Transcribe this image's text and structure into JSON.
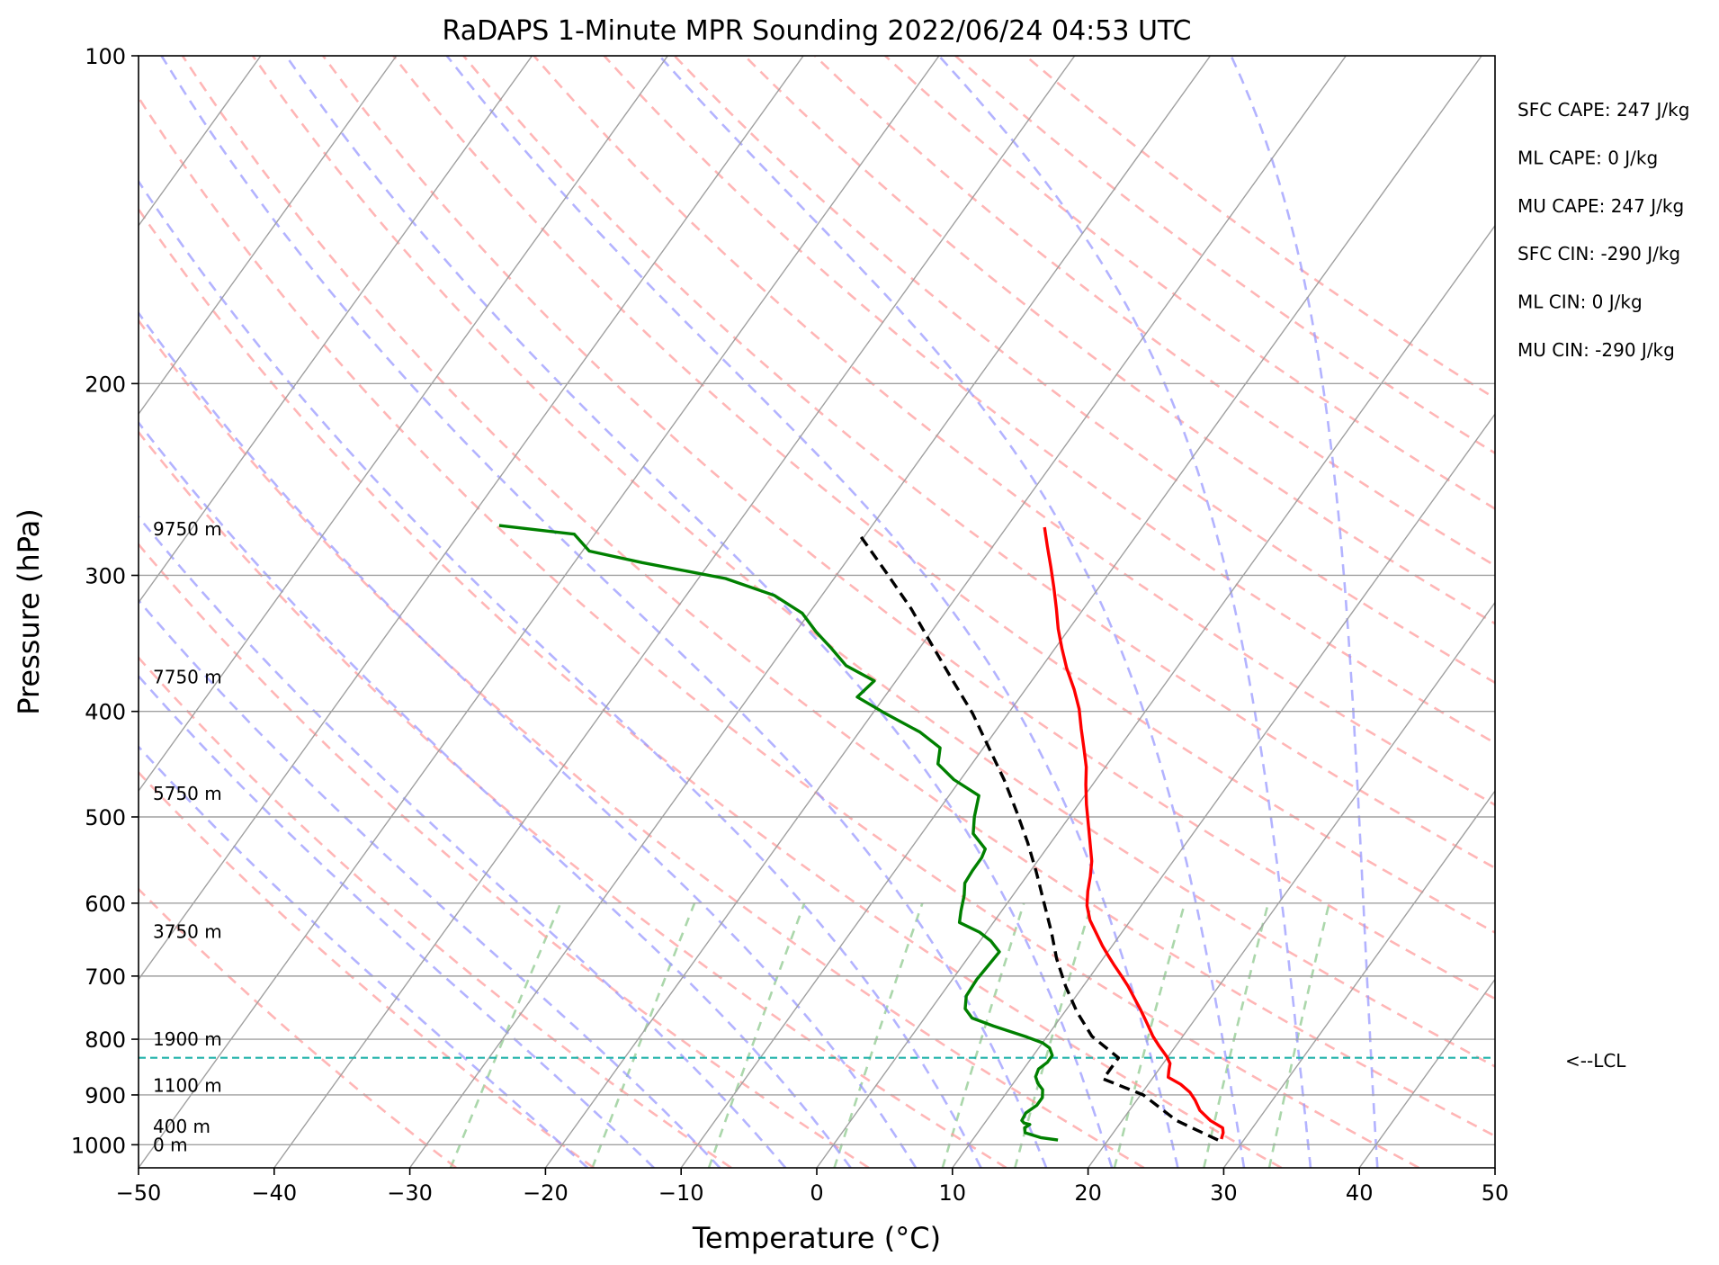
{
  "chart_data": {
    "type": "line",
    "title": "RaDAPS 1-Minute MPR Sounding 2022/06/24 04:53 UTC",
    "xlabel": "Temperature (°C)",
    "ylabel": "Pressure (hPa)",
    "xlim": [
      -50,
      50
    ],
    "ylim": [
      1050,
      100
    ],
    "y_scale": "log",
    "grid": true,
    "x_ticks": [
      "−50",
      "−40",
      "−30",
      "−20",
      "−10",
      "0",
      "10",
      "20",
      "30",
      "40",
      "50"
    ],
    "y_ticks": [
      {
        "p": 100,
        "label": "100"
      },
      {
        "p": 200,
        "label": "200"
      },
      {
        "p": 300,
        "label": "300"
      },
      {
        "p": 400,
        "label": "400"
      },
      {
        "p": 500,
        "label": "500"
      },
      {
        "p": 600,
        "label": "600"
      },
      {
        "p": 700,
        "label": "700"
      },
      {
        "p": 800,
        "label": "800"
      },
      {
        "p": 900,
        "label": "900"
      },
      {
        "p": 1000,
        "label": "1000"
      }
    ],
    "series": [
      {
        "role": "temperature",
        "color": "#ff0000",
        "points": [
          [
            28.3,
            988
          ],
          [
            28.1,
            975
          ],
          [
            27.8,
            965
          ],
          [
            26.5,
            950
          ],
          [
            25.2,
            930
          ],
          [
            24.3,
            910
          ],
          [
            23.5,
            895
          ],
          [
            22.4,
            880
          ],
          [
            21.1,
            867
          ],
          [
            20.8,
            855
          ],
          [
            20.5,
            842
          ],
          [
            19.9,
            830
          ],
          [
            18.8,
            812
          ],
          [
            17.8,
            795
          ],
          [
            16.7,
            774
          ],
          [
            15.5,
            752
          ],
          [
            14.5,
            735
          ],
          [
            13.3,
            715
          ],
          [
            12.3,
            700
          ],
          [
            11.1,
            683
          ],
          [
            10.2,
            670
          ],
          [
            9.3,
            657
          ],
          [
            8.2,
            640
          ],
          [
            7.0,
            622
          ],
          [
            6.0,
            603
          ],
          [
            5.3,
            585
          ],
          [
            4.7,
            567
          ],
          [
            4.0,
            549
          ],
          [
            3.0,
            530
          ],
          [
            1.8,
            508
          ],
          [
            0.6,
            487
          ],
          [
            -0.5,
            467
          ],
          [
            -1.4,
            450
          ],
          [
            -2.6,
            432
          ],
          [
            -3.8,
            415
          ],
          [
            -5.0,
            398
          ],
          [
            -6.4,
            382
          ],
          [
            -8.1,
            365
          ],
          [
            -9.5,
            350
          ],
          [
            -10.8,
            336
          ],
          [
            -12.0,
            322
          ],
          [
            -13.3,
            308
          ],
          [
            -14.6,
            295
          ],
          [
            -16.0,
            282
          ],
          [
            -17.2,
            271
          ]
        ]
      },
      {
        "role": "dewpoint",
        "color": "#008000",
        "points": [
          [
            16.3,
            990
          ],
          [
            14.9,
            985
          ],
          [
            13.5,
            975
          ],
          [
            13.2,
            965
          ],
          [
            13.4,
            958
          ],
          [
            12.9,
            955
          ],
          [
            12.6,
            950
          ],
          [
            12.5,
            935
          ],
          [
            12.9,
            920
          ],
          [
            12.9,
            905
          ],
          [
            12.5,
            890
          ],
          [
            11.8,
            878
          ],
          [
            11.3,
            866
          ],
          [
            11.1,
            852
          ],
          [
            11.4,
            840
          ],
          [
            11.4,
            828
          ],
          [
            10.8,
            815
          ],
          [
            10.0,
            806
          ],
          [
            8.5,
            796
          ],
          [
            5.5,
            778
          ],
          [
            3.5,
            765
          ],
          [
            2.5,
            750
          ],
          [
            1.9,
            730
          ],
          [
            1.8,
            705
          ],
          [
            1.9,
            685
          ],
          [
            2.0,
            665
          ],
          [
            0.8,
            650
          ],
          [
            -0.5,
            638
          ],
          [
            -2.5,
            625
          ],
          [
            -3.0,
            610
          ],
          [
            -3.6,
            590
          ],
          [
            -4.2,
            575
          ],
          [
            -4.3,
            560
          ],
          [
            -4.3,
            545
          ],
          [
            -4.5,
            535
          ],
          [
            -6.2,
            518
          ],
          [
            -7.0,
            500
          ],
          [
            -7.8,
            478
          ],
          [
            -10.5,
            462
          ],
          [
            -12.5,
            447
          ],
          [
            -13.2,
            432
          ],
          [
            -15.5,
            418
          ],
          [
            -19.0,
            402
          ],
          [
            -22.0,
            388
          ],
          [
            -21.6,
            375
          ],
          [
            -24.5,
            363
          ],
          [
            -26.5,
            350
          ],
          [
            -28.5,
            338
          ],
          [
            -30.5,
            325
          ],
          [
            -33.5,
            313
          ],
          [
            -38.0,
            302
          ],
          [
            -45.0,
            292
          ],
          [
            -49.5,
            285
          ],
          [
            -51.5,
            275
          ],
          [
            -57.5,
            270
          ]
        ]
      },
      {
        "role": "parcel",
        "color": "#000000",
        "dashed": true,
        "points": [
          [
            28.1,
            990
          ],
          [
            24.0,
            950
          ],
          [
            20.2,
            900
          ],
          [
            16.4,
            870
          ],
          [
            16.4,
            832
          ],
          [
            13.3,
            795
          ],
          [
            10.9,
            755
          ],
          [
            8.7,
            715
          ],
          [
            6.6,
            675
          ],
          [
            4.8,
            638
          ],
          [
            2.6,
            598
          ],
          [
            0.5,
            562
          ],
          [
            -1.7,
            528
          ],
          [
            -4.2,
            494
          ],
          [
            -6.8,
            462
          ],
          [
            -9.6,
            432
          ],
          [
            -12.6,
            402
          ],
          [
            -15.8,
            375
          ],
          [
            -19.2,
            348
          ],
          [
            -22.7,
            322
          ],
          [
            -26.5,
            298
          ],
          [
            -30.5,
            275
          ]
        ]
      }
    ],
    "lcl": {
      "p": 832,
      "label": "<--LCL",
      "color": "#20b2aa"
    },
    "height_labels": [
      {
        "p": 272,
        "label": "9750 m"
      },
      {
        "p": 372,
        "label": "7750 m"
      },
      {
        "p": 476,
        "label": "5750 m"
      },
      {
        "p": 637,
        "label": "3750 m"
      },
      {
        "p": 800,
        "label": "1900 m"
      },
      {
        "p": 882,
        "label": "1100 m"
      },
      {
        "p": 962,
        "label": "400 m"
      },
      {
        "p": 1000,
        "label": "0 m"
      }
    ],
    "indices": [
      {
        "label": "SFC CAPE: 247 J/kg"
      },
      {
        "label": "ML CAPE: 0 J/kg"
      },
      {
        "label": "MU CAPE: 247 J/kg"
      },
      {
        "label": "SFC CIN: -290 J/kg"
      },
      {
        "label": "ML CIN: 0 J/kg"
      },
      {
        "label": "MU CIN: -290 J/kg"
      }
    ],
    "isotherms": [
      -100,
      -90,
      -80,
      -70,
      -60,
      -50,
      -40,
      -30,
      -20,
      -10,
      0,
      10,
      20,
      30,
      40,
      50
    ],
    "dry_adiabats_theta_c": [
      -30,
      -20,
      -10,
      0,
      10,
      20,
      30,
      40,
      50,
      60,
      70,
      80,
      90,
      100,
      110,
      120,
      130,
      140,
      150,
      160,
      170
    ],
    "moist_adiabats_c": [
      -20,
      -15,
      -10,
      -5,
      0,
      5,
      10,
      15,
      20,
      25,
      30,
      35,
      40
    ],
    "mixing_ratios_gkg": [
      0.4,
      1,
      2,
      4,
      7,
      10,
      16,
      24,
      32
    ],
    "colors": {
      "dry_adiabat": "#ff9e9e",
      "moist_adiabat": "#9a9aff",
      "mixing_ratio": "#8fc98f",
      "isotherm": "#a0a0a0",
      "isobar": "#a0a0a0"
    }
  }
}
